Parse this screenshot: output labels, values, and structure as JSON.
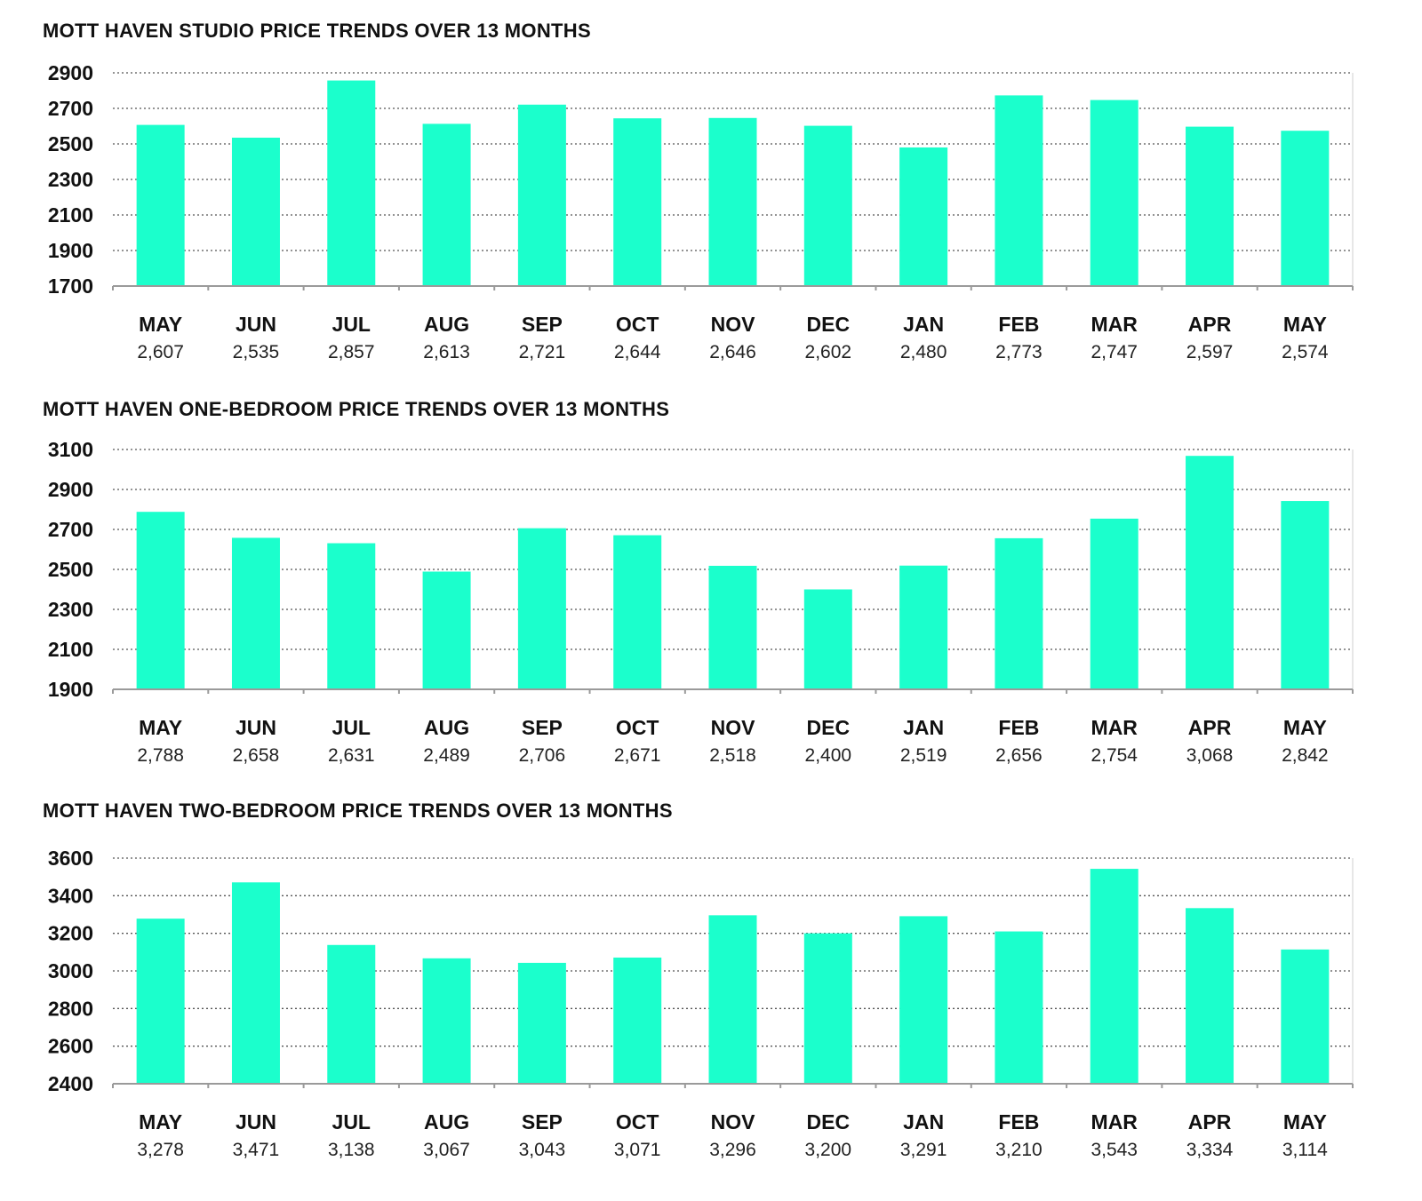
{
  "colors": {
    "bar": "#1bffcc",
    "grid": "#555555",
    "axis": "#9a9a9a",
    "text": "#111111"
  },
  "chart_data": [
    {
      "type": "bar",
      "title": "MOTT HAVEN STUDIO PRICE TRENDS OVER 13 MONTHS",
      "categories": [
        "MAY",
        "JUN",
        "JUL",
        "AUG",
        "SEP",
        "OCT",
        "NOV",
        "DEC",
        "JAN",
        "FEB",
        "MAR",
        "APR",
        "MAY"
      ],
      "values": [
        2607,
        2535,
        2857,
        2613,
        2721,
        2644,
        2646,
        2602,
        2480,
        2773,
        2747,
        2597,
        2574
      ],
      "value_labels": [
        "2,607",
        "2,535",
        "2,857",
        "2,613",
        "2,721",
        "2,644",
        "2,646",
        "2,602",
        "2,480",
        "2,773",
        "2,747",
        "2,597",
        "2,574"
      ],
      "yticks": [
        1700,
        1900,
        2100,
        2300,
        2500,
        2700,
        2900
      ],
      "ytick_labels": [
        "1700",
        "1900",
        "2100",
        "2300",
        "2500",
        "2700",
        "2900"
      ],
      "ylim": [
        1700,
        2900
      ],
      "grid": true
    },
    {
      "type": "bar",
      "title": "MOTT HAVEN ONE-BEDROOM PRICE TRENDS OVER 13 MONTHS",
      "categories": [
        "MAY",
        "JUN",
        "JUL",
        "AUG",
        "SEP",
        "OCT",
        "NOV",
        "DEC",
        "JAN",
        "FEB",
        "MAR",
        "APR",
        "MAY"
      ],
      "values": [
        2788,
        2658,
        2631,
        2489,
        2706,
        2671,
        2518,
        2400,
        2519,
        2656,
        2754,
        3068,
        2842
      ],
      "value_labels": [
        "2,788",
        "2,658",
        "2,631",
        "2,489",
        "2,706",
        "2,671",
        "2,518",
        "2,400",
        "2,519",
        "2,656",
        "2,754",
        "3,068",
        "2,842"
      ],
      "yticks": [
        1900,
        2100,
        2300,
        2500,
        2700,
        2900,
        3100
      ],
      "ytick_labels": [
        "1900",
        "2100",
        "2300",
        "2500",
        "2700",
        "2900",
        "3100"
      ],
      "ylim": [
        1900,
        3100
      ],
      "grid": true
    },
    {
      "type": "bar",
      "title": "MOTT HAVEN TWO-BEDROOM PRICE TRENDS OVER 13 MONTHS",
      "categories": [
        "MAY",
        "JUN",
        "JUL",
        "AUG",
        "SEP",
        "OCT",
        "NOV",
        "DEC",
        "JAN",
        "FEB",
        "MAR",
        "APR",
        "MAY"
      ],
      "values": [
        3278,
        3471,
        3138,
        3067,
        3043,
        3071,
        3296,
        3200,
        3291,
        3210,
        3543,
        3334,
        3114
      ],
      "value_labels": [
        "3,278",
        "3,471",
        "3,138",
        "3,067",
        "3,043",
        "3,071",
        "3,296",
        "3,200",
        "3,291",
        "3,210",
        "3,543",
        "3,334",
        "3,114"
      ],
      "yticks": [
        2400,
        2600,
        2800,
        3000,
        3200,
        3400,
        3600
      ],
      "ytick_labels": [
        "2400",
        "2600",
        "2800",
        "3000",
        "3200",
        "3400",
        "3600"
      ],
      "ylim": [
        2400,
        3600
      ],
      "grid": true
    }
  ]
}
